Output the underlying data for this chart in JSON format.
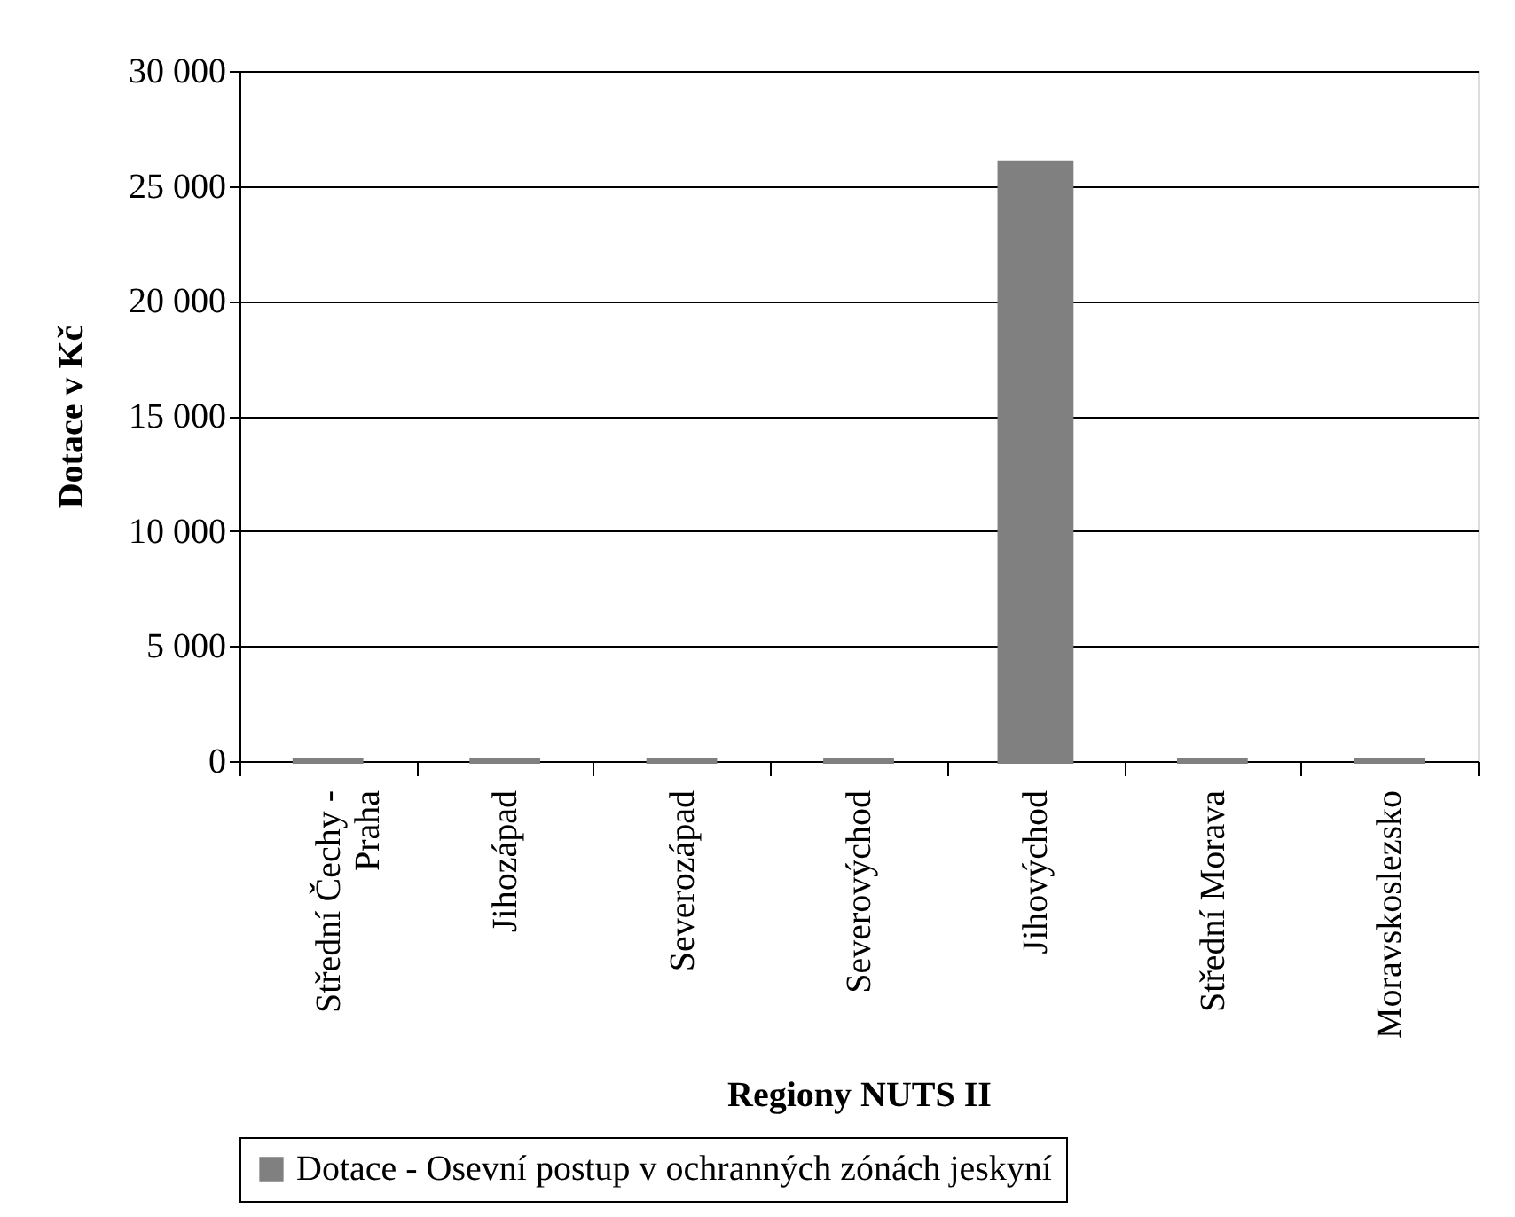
{
  "chart_data": {
    "type": "bar",
    "xlabel": "Regiony NUTS II",
    "ylabel": "Dotace v Kč",
    "categories": [
      "Střední Čechy - Praha",
      "Jihozápad",
      "Severozápad",
      "Severovýchod",
      "Jihovýchod",
      "Střední Morava",
      "Moravskoslezsko"
    ],
    "series": [
      {
        "name": "Dotace - Osevní postup v ochranných zónách jeskyní",
        "color": "#808080",
        "values": [
          0,
          0,
          0,
          0,
          26000,
          0,
          0
        ]
      }
    ],
    "ylim": [
      0,
      30000
    ],
    "yticks": [
      0,
      {
        "value": 5000,
        "label": "5 000"
      },
      {
        "value": 10000,
        "label": "10 000"
      },
      {
        "value": 15000,
        "label": "15 000"
      },
      {
        "value": 20000,
        "label": "20 000"
      },
      {
        "value": 25000,
        "label": "25 000"
      },
      {
        "value": 30000,
        "label": "30 000"
      }
    ],
    "grid": "y",
    "legend": "bottom"
  }
}
